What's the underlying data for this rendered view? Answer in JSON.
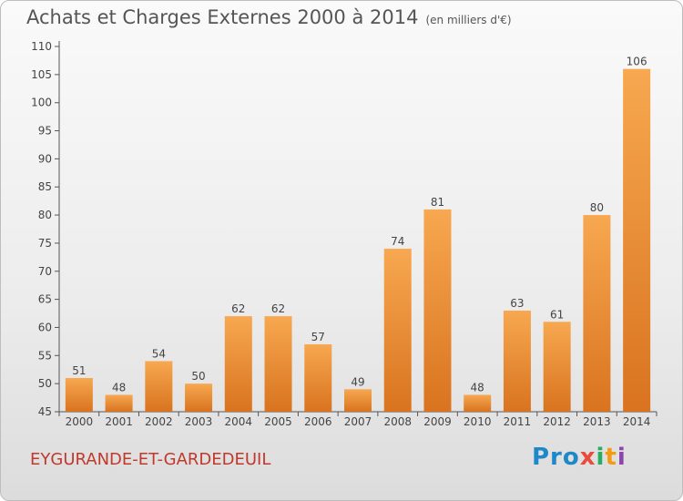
{
  "header": {
    "title": "Achats et Charges Externes 2000 à 2014",
    "subtitle": "(en milliers d'€)"
  },
  "footer": {
    "commune": "EYGURANDE-ET-GARDEDEUIL",
    "logo_parts": [
      "Pro",
      "x",
      "i",
      "t",
      "i"
    ]
  },
  "colors": {
    "bar_top": "#f7a850",
    "bar_bottom": "#d9731f",
    "axis": "#555555",
    "commune": "#c0392b"
  },
  "chart_data": {
    "type": "bar",
    "categories": [
      "2000",
      "2001",
      "2002",
      "2003",
      "2004",
      "2005",
      "2006",
      "2007",
      "2008",
      "2009",
      "2010",
      "2011",
      "2012",
      "2013",
      "2014"
    ],
    "values": [
      51,
      48,
      54,
      50,
      62,
      62,
      57,
      49,
      74,
      81,
      48,
      63,
      61,
      80,
      106
    ],
    "ylim": [
      45,
      110
    ],
    "yticks": [
      45,
      50,
      55,
      60,
      65,
      70,
      75,
      80,
      85,
      90,
      95,
      100,
      105,
      110
    ],
    "grid": false,
    "data_labels": true
  }
}
